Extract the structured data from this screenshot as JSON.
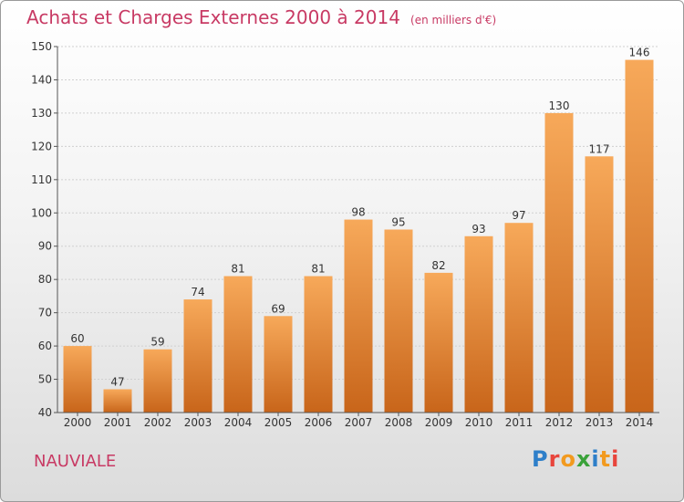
{
  "title": "Achats et Charges Externes 2000 à 2014",
  "unit_note": "(en milliers d'€)",
  "commune": "NAUVIALE",
  "brand": {
    "name": "Proxiti",
    "letter_colors": [
      "#2e7fc9",
      "#e8453c",
      "#f29a1f",
      "#3aa23a",
      "#2e7fc9",
      "#f29a1f",
      "#e8453c"
    ]
  },
  "colors": {
    "bar_light": "#f7a95a",
    "bar_dark": "#c8651a",
    "title": "#c83a64",
    "grid": "#d0d0d0"
  },
  "chart_data": {
    "type": "bar",
    "categories": [
      "2000",
      "2001",
      "2002",
      "2003",
      "2004",
      "2005",
      "2006",
      "2007",
      "2008",
      "2009",
      "2010",
      "2011",
      "2012",
      "2013",
      "2014"
    ],
    "values": [
      60,
      47,
      59,
      74,
      81,
      69,
      81,
      98,
      95,
      82,
      93,
      97,
      130,
      117,
      146
    ],
    "ylim": [
      40,
      150
    ],
    "yticks": [
      40,
      50,
      60,
      70,
      80,
      90,
      100,
      110,
      120,
      130,
      140,
      150
    ],
    "grid": true
  }
}
